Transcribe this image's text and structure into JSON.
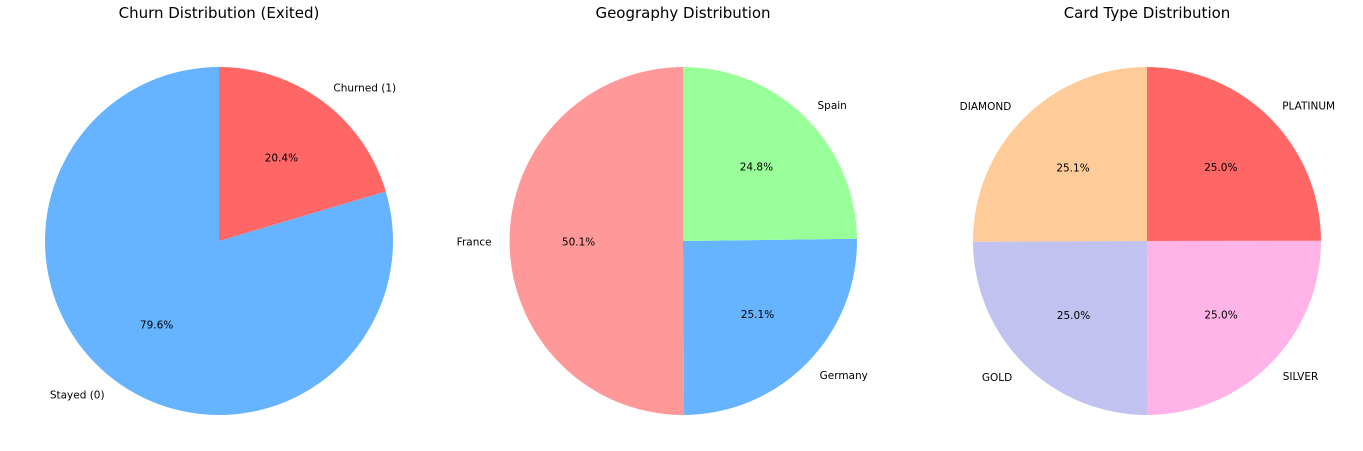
{
  "chart_data": [
    {
      "type": "pie",
      "title": "Churn Distribution (Exited)",
      "slices": [
        {
          "label": "Stayed (0)",
          "value": 79.6,
          "pct_label": "79.6%",
          "color": "#66b3ff"
        },
        {
          "label": "Churned (1)",
          "value": 20.4,
          "pct_label": "20.4%",
          "color": "#ff6666"
        }
      ]
    },
    {
      "type": "pie",
      "title": "Geography Distribution",
      "slices": [
        {
          "label": "France",
          "value": 50.1,
          "pct_label": "50.1%",
          "color": "#ff9999"
        },
        {
          "label": "Spain",
          "value": 24.8,
          "pct_label": "24.8%",
          "color": "#99ff99"
        },
        {
          "label": "Germany",
          "value": 25.1,
          "pct_label": "25.1%",
          "color": "#66b3ff"
        }
      ]
    },
    {
      "type": "pie",
      "title": "Card Type Distribution",
      "slices": [
        {
          "label": "DIAMOND",
          "value": 25.1,
          "pct_label": "25.1%",
          "color": "#ffcc99"
        },
        {
          "label": "GOLD",
          "value": 25.0,
          "pct_label": "25.0%",
          "color": "#c2c2f0"
        },
        {
          "label": "SILVER",
          "value": 25.0,
          "pct_label": "25.0%",
          "color": "#ffb3e6"
        },
        {
          "label": "PLATINUM",
          "value": 25.0,
          "pct_label": "25.0%",
          "color": "#ff6666"
        }
      ]
    }
  ]
}
